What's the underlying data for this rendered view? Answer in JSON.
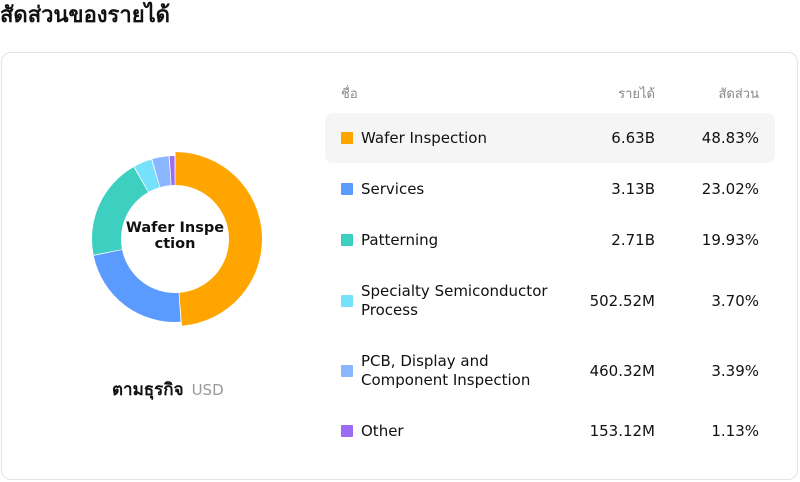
{
  "title": "สัดส่วนของรายได้",
  "table": {
    "header_name": "ชื่อ",
    "header_revenue": "รายได้",
    "header_share": "สัดส่วน"
  },
  "donut": {
    "center_label": "Wafer Inspection",
    "caption": "ตามธุรกิจ",
    "unit": "USD"
  },
  "chart_data": {
    "type": "pie",
    "variant": "donut",
    "categories": [
      "Wafer Inspection",
      "Services",
      "Patterning",
      "Specialty Semiconductor Process",
      "PCB, Display and Component Inspection",
      "Other"
    ],
    "values": [
      48.83,
      23.02,
      19.93,
      3.7,
      3.39,
      1.13
    ],
    "revenue_labels": [
      "6.63B",
      "3.13B",
      "2.71B",
      "502.52M",
      "460.32M",
      "153.12M"
    ],
    "share_labels": [
      "48.83%",
      "23.02%",
      "19.93%",
      "3.70%",
      "3.39%",
      "1.13%"
    ],
    "colors": [
      "#FFA500",
      "#5B9BFF",
      "#3DD0C0",
      "#75E1FA",
      "#8AB6FF",
      "#9C6CF5"
    ],
    "highlighted": "Wafer Inspection"
  }
}
